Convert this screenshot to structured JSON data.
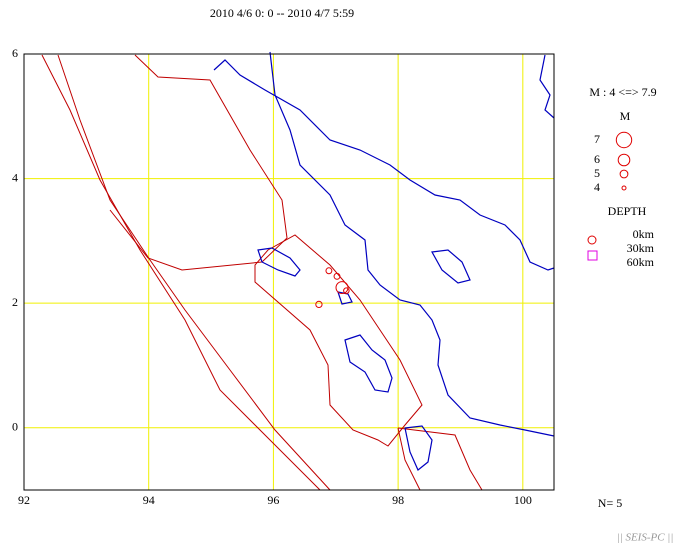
{
  "chart_data": {
    "type": "scatter",
    "title": "2010 4/6 0: 0 -- 2010 4/7 5:59",
    "x": [
      96.89,
      97.02,
      96.73,
      97.1,
      97.17
    ],
    "values": [
      2.52,
      2.43,
      1.98,
      2.25,
      2.2
    ],
    "sizes": [
      4.5,
      4.5,
      4.6,
      6.1,
      4.4
    ],
    "color": "#e00000",
    "xlim": [
      92,
      100.5
    ],
    "ylim": [
      -1,
      6
    ],
    "xticks": [
      92,
      94,
      96,
      98,
      100
    ],
    "yticks": [
      0,
      2,
      4,
      6
    ],
    "grid": true,
    "legend": {
      "range_label": "M : 4 <=> 7.9",
      "size_title": "M",
      "magnitudes": [
        7,
        6,
        5,
        4
      ],
      "depth_title": "DEPTH",
      "depth_labels": [
        "0km",
        "30km",
        "60km"
      ]
    },
    "count_label": "N= 5",
    "footer": "|| SEIS-PC ||"
  }
}
